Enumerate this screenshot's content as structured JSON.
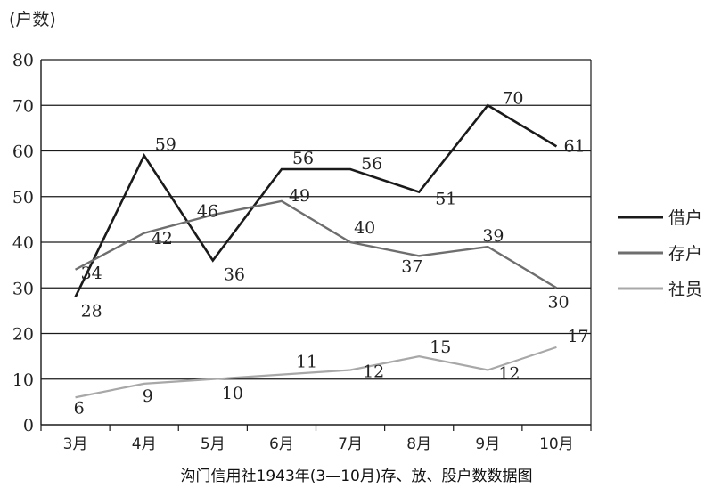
{
  "chart_data": {
    "type": "line",
    "title": "沟门信用社1943年(3—10月)存、放、股户数数据图",
    "ylabel": "(户数)",
    "xlabel": "",
    "categories": [
      "3月",
      "4月",
      "5月",
      "6月",
      "7月",
      "8月",
      "9月",
      "10月"
    ],
    "ylim": [
      0,
      80
    ],
    "yticks": [
      0,
      10,
      20,
      30,
      40,
      50,
      60,
      70,
      80
    ],
    "grid": "horizontal",
    "legend": "right",
    "series": [
      {
        "name": "借户",
        "values": [
          28,
          59,
          36,
          56,
          56,
          51,
          70,
          61
        ],
        "color": "#1a1a1a"
      },
      {
        "name": "存户",
        "values": [
          34,
          42,
          46,
          49,
          40,
          37,
          39,
          30
        ],
        "color": "#6e6e6e"
      },
      {
        "name": "社员",
        "values": [
          6,
          9,
          10,
          11,
          12,
          15,
          12,
          17
        ],
        "color": "#a8a8a8"
      }
    ]
  }
}
